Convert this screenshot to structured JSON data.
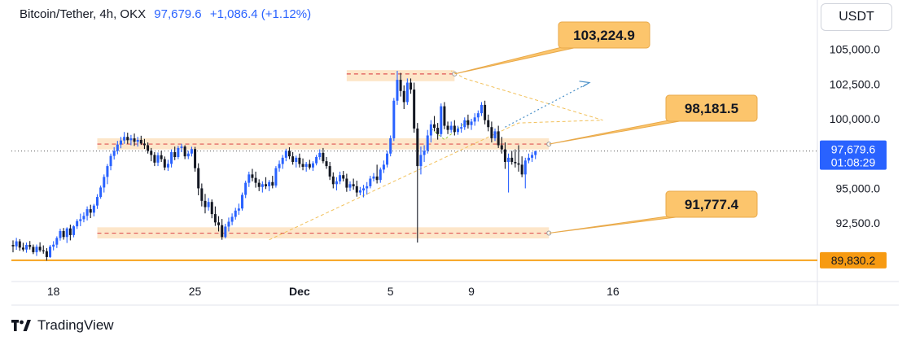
{
  "header": {
    "symbol": "Bitcoin/Tether, 4h, OKX",
    "last_price": "97,679.6",
    "change": "+1,086.4 (+1.12%)"
  },
  "currency_button": {
    "label": "USDT"
  },
  "brand": {
    "name": "TradingView"
  },
  "colors": {
    "up": "#2962ff",
    "down": "#131722",
    "zone": "#fde2c0",
    "callout_fill": "#fcc56c",
    "callout_border": "#e8a94a",
    "dashed_red": "#e05555",
    "support_line": "#f7a31c",
    "triangle_orange": "#f2c15b",
    "triangle_green": "#9ccc3a",
    "projection_blue": "#4a90c8",
    "current_price_tag": "#2962ff",
    "support_price_tag": "#f79a11"
  },
  "chart_data": {
    "type": "candlestick",
    "y_axis": {
      "ticks": [
        "105,000.0",
        "102,500.0",
        "100,000.0",
        "95,000.0",
        "92,500.0"
      ],
      "tick_values": [
        105000,
        102500,
        100000,
        95000,
        92500
      ],
      "range": [
        88300,
        106200
      ]
    },
    "x_axis": {
      "ticks": [
        "18",
        "25",
        "Dec",
        "5",
        "9",
        "16"
      ],
      "tick_bold": [
        false,
        false,
        true,
        false,
        false,
        false
      ],
      "tick_bar_index": [
        12,
        54,
        85,
        112,
        136,
        178
      ]
    },
    "current_price": {
      "value": 97679.6,
      "label": "97,679.6",
      "countdown": "01:08:29"
    },
    "support_price": {
      "value": 89830.2,
      "label": "89,830.2"
    },
    "levels": [
      {
        "value": 103224.9,
        "label": "103,224.9",
        "zone": [
          102700,
          103500
        ],
        "start_bar": 99,
        "end_bar": 131
      },
      {
        "value": 98181.5,
        "label": "98,181.5",
        "zone": [
          97800,
          98600
        ],
        "start_bar": 25,
        "end_bar": 159
      },
      {
        "value": 91777.4,
        "label": "91,777.4",
        "zone": [
          91400,
          92200
        ],
        "start_bar": 25,
        "end_bar": 159
      }
    ],
    "lows": [
      90100,
      90600,
      90300,
      91300,
      94700,
      90800,
      91300,
      93300
    ],
    "highs": [
      98100,
      99050,
      98600,
      103450
    ],
    "ohlc": [
      [
        90930,
        91260,
        90400,
        90830
      ],
      [
        90830,
        91440,
        90580,
        91190
      ],
      [
        91190,
        91350,
        90510,
        90740
      ],
      [
        90740,
        91090,
        90460,
        90600
      ],
      [
        90600,
        91100,
        90370,
        90930
      ],
      [
        90930,
        91210,
        90600,
        90790
      ],
      [
        90790,
        90960,
        90270,
        90410
      ],
      [
        90410,
        90960,
        90140,
        90800
      ],
      [
        90800,
        91120,
        90430,
        90550
      ],
      [
        90550,
        90900,
        90300,
        90480
      ],
      [
        90480,
        90700,
        89800,
        90060
      ],
      [
        90060,
        90930,
        90000,
        90810
      ],
      [
        90810,
        91200,
        90540,
        90950
      ],
      [
        90950,
        91550,
        90710,
        91430
      ],
      [
        91430,
        92100,
        91240,
        91930
      ],
      [
        91930,
        92150,
        91310,
        91500
      ],
      [
        91500,
        92200,
        91070,
        92120
      ],
      [
        92120,
        92390,
        91260,
        91640
      ],
      [
        91640,
        92350,
        91480,
        92270
      ],
      [
        92270,
        92790,
        92080,
        92650
      ],
      [
        92650,
        93180,
        92280,
        92780
      ],
      [
        92780,
        93280,
        92560,
        93020
      ],
      [
        93020,
        93700,
        92690,
        93500
      ],
      [
        93500,
        93820,
        92860,
        93250
      ],
      [
        93250,
        93880,
        92980,
        93760
      ],
      [
        93760,
        94580,
        93520,
        94380
      ],
      [
        94380,
        95200,
        94250,
        95060
      ],
      [
        95060,
        96000,
        94700,
        95820
      ],
      [
        95820,
        96750,
        95300,
        96600
      ],
      [
        96600,
        97500,
        96300,
        97330
      ],
      [
        97330,
        97950,
        97070,
        97690
      ],
      [
        97690,
        98410,
        97450,
        98150
      ],
      [
        98150,
        98700,
        97880,
        98440
      ],
      [
        98440,
        99050,
        98200,
        98700
      ],
      [
        98700,
        99000,
        98200,
        98460
      ],
      [
        98460,
        98840,
        98100,
        98590
      ],
      [
        98590,
        98940,
        98050,
        98350
      ],
      [
        98350,
        98700,
        98000,
        98480
      ],
      [
        98480,
        98780,
        98120,
        98220
      ],
      [
        98220,
        98550,
        97830,
        98100
      ],
      [
        98100,
        98300,
        97500,
        97700
      ],
      [
        97700,
        97900,
        96950,
        97400
      ],
      [
        97400,
        97600,
        96600,
        96850
      ],
      [
        96850,
        97580,
        96600,
        97380
      ],
      [
        97380,
        97700,
        96900,
        97100
      ],
      [
        97100,
        97290,
        96300,
        96500
      ],
      [
        96500,
        97050,
        96250,
        96760
      ],
      [
        96760,
        97800,
        96500,
        97600
      ],
      [
        97600,
        98000,
        97030,
        97250
      ],
      [
        97250,
        98050,
        97100,
        97900
      ],
      [
        97900,
        98200,
        97600,
        98000
      ],
      [
        98000,
        98100,
        97100,
        97300
      ],
      [
        97300,
        97700,
        97100,
        97500
      ],
      [
        97500,
        97990,
        97290,
        97820
      ],
      [
        97820,
        97980,
        96200,
        96450
      ],
      [
        96450,
        96800,
        94500,
        95000
      ],
      [
        95000,
        95350,
        93700,
        94100
      ],
      [
        94100,
        94600,
        93200,
        93650
      ],
      [
        93650,
        94300,
        93400,
        94020
      ],
      [
        94020,
        94200,
        92850,
        93150
      ],
      [
        93150,
        93700,
        92300,
        92550
      ],
      [
        92550,
        93000,
        91900,
        92350
      ],
      [
        92350,
        92800,
        91300,
        91500
      ],
      [
        91500,
        92450,
        91400,
        92250
      ],
      [
        92250,
        92900,
        91900,
        92600
      ],
      [
        92600,
        93200,
        92350,
        92950
      ],
      [
        92950,
        93600,
        92750,
        93400
      ],
      [
        93400,
        93900,
        93100,
        93550
      ],
      [
        93550,
        94700,
        93400,
        94530
      ],
      [
        94530,
        95550,
        94300,
        95400
      ],
      [
        95400,
        96200,
        95100,
        96000
      ],
      [
        96000,
        96400,
        95500,
        95750
      ],
      [
        95750,
        96200,
        95050,
        95400
      ],
      [
        95400,
        95650,
        94800,
        95100
      ],
      [
        95100,
        95500,
        94700,
        95300
      ],
      [
        95300,
        95800,
        94950,
        95150
      ],
      [
        95150,
        95600,
        94800,
        95450
      ],
      [
        95450,
        95900,
        95000,
        95200
      ],
      [
        95200,
        96600,
        95050,
        96450
      ],
      [
        96450,
        97000,
        96200,
        96750
      ],
      [
        96750,
        97400,
        96400,
        97200
      ],
      [
        97200,
        97850,
        96950,
        97700
      ],
      [
        97700,
        97950,
        97100,
        97300
      ],
      [
        97300,
        97600,
        96700,
        96900
      ],
      [
        96900,
        97350,
        96500,
        97200
      ],
      [
        97200,
        97500,
        96500,
        96750
      ],
      [
        96750,
        97150,
        96300,
        96550
      ],
      [
        96550,
        96900,
        96200,
        96750
      ],
      [
        96750,
        97050,
        96350,
        96500
      ],
      [
        96500,
        96950,
        96250,
        96800
      ],
      [
        96800,
        97400,
        96650,
        97250
      ],
      [
        97250,
        97800,
        97050,
        97550
      ],
      [
        97550,
        97900,
        96800,
        96950
      ],
      [
        96950,
        97250,
        96400,
        96600
      ],
      [
        96600,
        96900,
        95600,
        95850
      ],
      [
        95850,
        96150,
        95000,
        95300
      ],
      [
        95300,
        95800,
        94850,
        95500
      ],
      [
        95500,
        96200,
        95300,
        95950
      ],
      [
        95950,
        96250,
        95500,
        95700
      ],
      [
        95700,
        96050,
        94750,
        95050
      ],
      [
        95050,
        95500,
        94800,
        95300
      ],
      [
        95300,
        95700,
        94900,
        95150
      ],
      [
        95150,
        95550,
        94400,
        94700
      ],
      [
        94700,
        95100,
        94500,
        94850
      ],
      [
        94850,
        95250,
        94350,
        95000
      ],
      [
        95000,
        95450,
        94550,
        95150
      ],
      [
        95150,
        95900,
        95000,
        95700
      ],
      [
        95700,
        96100,
        95500,
        95850
      ],
      [
        95850,
        96700,
        95350,
        95600
      ],
      [
        95600,
        96500,
        95400,
        96350
      ],
      [
        96350,
        97000,
        96100,
        96700
      ],
      [
        96700,
        97700,
        96500,
        97500
      ],
      [
        97500,
        98800,
        97300,
        98600
      ],
      [
        98600,
        101500,
        98400,
        101300
      ],
      [
        101300,
        103450,
        101000,
        102800
      ],
      [
        102800,
        103300,
        101600,
        102000
      ],
      [
        102000,
        102400,
        100700,
        101200
      ],
      [
        101200,
        102900,
        101000,
        102600
      ],
      [
        102600,
        102900,
        101800,
        102100
      ],
      [
        102100,
        102600,
        99000,
        99300
      ],
      [
        99300,
        99700,
        91100,
        96600
      ],
      [
        96600,
        98000,
        96000,
        97400
      ],
      [
        97400,
        98100,
        96900,
        97700
      ],
      [
        97700,
        99200,
        97500,
        98800
      ],
      [
        98800,
        99900,
        98300,
        99600
      ],
      [
        99600,
        100200,
        99100,
        99350
      ],
      [
        99350,
        99700,
        98500,
        98900
      ],
      [
        98900,
        101100,
        98700,
        100900
      ],
      [
        100900,
        101200,
        99250,
        99500
      ],
      [
        99500,
        99800,
        98900,
        99200
      ],
      [
        99200,
        99800,
        99000,
        99500
      ],
      [
        99500,
        99900,
        98800,
        99050
      ],
      [
        99050,
        99500,
        98850,
        99300
      ],
      [
        99300,
        99700,
        99000,
        99400
      ],
      [
        99400,
        100100,
        99200,
        99900
      ],
      [
        99900,
        100300,
        99300,
        99550
      ],
      [
        99550,
        100000,
        99200,
        99800
      ],
      [
        99800,
        100400,
        99500,
        100100
      ],
      [
        100100,
        100600,
        99800,
        100400
      ],
      [
        100400,
        101200,
        100200,
        101000
      ],
      [
        101000,
        101300,
        99600,
        99900
      ],
      [
        99900,
        100300,
        99100,
        99400
      ],
      [
        99400,
        99800,
        98300,
        98600
      ],
      [
        98600,
        99300,
        98400,
        99100
      ],
      [
        99100,
        99500,
        97900,
        98100
      ],
      [
        98100,
        98700,
        97500,
        97800
      ],
      [
        97800,
        98300,
        96400,
        96900
      ],
      [
        96900,
        97500,
        94700,
        97200
      ],
      [
        97200,
        97700,
        96700,
        96900
      ],
      [
        96900,
        97800,
        96500,
        96800
      ],
      [
        96800,
        98100,
        96200,
        96700
      ],
      [
        96700,
        97300,
        95800,
        96000
      ],
      [
        96000,
        97200,
        95000,
        97000
      ],
      [
        97000,
        97500,
        96800,
        97200
      ],
      [
        97200,
        97600,
        96900,
        97400
      ],
      [
        97400,
        97700,
        97100,
        97679.6
      ]
    ]
  }
}
